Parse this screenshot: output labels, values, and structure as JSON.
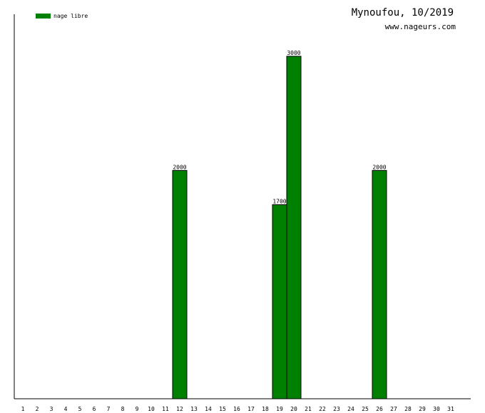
{
  "header": {
    "title": "Mynoufou, 10/2019",
    "subtitle": "www.nageurs.com"
  },
  "chart_data": {
    "type": "bar",
    "title": "Mynoufou, 10/2019",
    "subtitle": "www.nageurs.com",
    "xlabel": "",
    "ylabel": "",
    "categories": [
      "1",
      "2",
      "3",
      "4",
      "5",
      "6",
      "7",
      "8",
      "9",
      "10",
      "11",
      "12",
      "13",
      "14",
      "15",
      "16",
      "17",
      "18",
      "19",
      "20",
      "21",
      "22",
      "23",
      "24",
      "25",
      "26",
      "27",
      "28",
      "29",
      "30",
      "31"
    ],
    "series": [
      {
        "name": "nage libre",
        "color": "#008000",
        "values": [
          0,
          0,
          0,
          0,
          0,
          0,
          0,
          0,
          0,
          0,
          0,
          2000,
          0,
          0,
          0,
          0,
          0,
          0,
          1700,
          3000,
          0,
          0,
          0,
          0,
          0,
          2000,
          0,
          0,
          0,
          0,
          0
        ]
      }
    ],
    "ylim": [
      0,
      3000
    ],
    "grid": false,
    "legend_position": "top-left"
  }
}
